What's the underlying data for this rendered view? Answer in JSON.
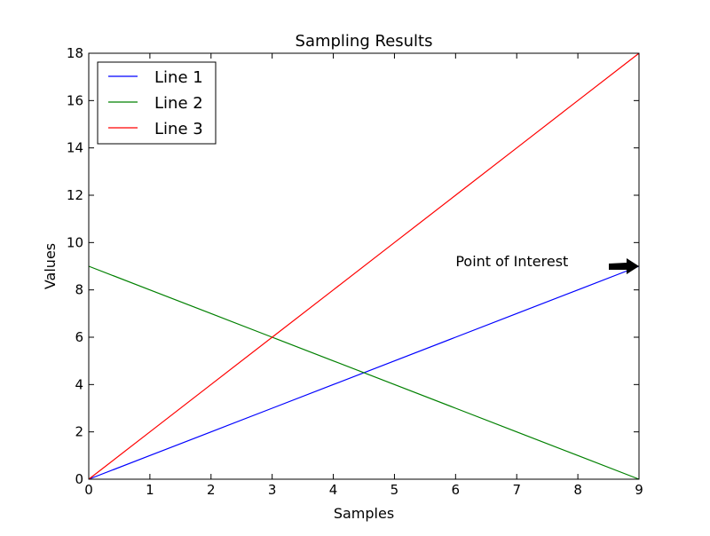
{
  "chart_data": {
    "type": "line",
    "title": "Sampling Results",
    "xlabel": "Samples",
    "ylabel": "Values",
    "xlim": [
      0,
      9
    ],
    "ylim": [
      0,
      18
    ],
    "xticks": [
      0,
      1,
      2,
      3,
      4,
      5,
      6,
      7,
      8,
      9
    ],
    "yticks": [
      0,
      2,
      4,
      6,
      8,
      10,
      12,
      14,
      16,
      18
    ],
    "x": [
      0,
      1,
      2,
      3,
      4,
      5,
      6,
      7,
      8,
      9
    ],
    "series": [
      {
        "name": "Line 1",
        "color": "#0000ff",
        "values": [
          0,
          1,
          2,
          3,
          4,
          5,
          6,
          7,
          8,
          9
        ]
      },
      {
        "name": "Line 2",
        "color": "#008000",
        "values": [
          9,
          8,
          7,
          6,
          5,
          4,
          3,
          2,
          1,
          0
        ]
      },
      {
        "name": "Line 3",
        "color": "#ff0000",
        "values": [
          0,
          2,
          4,
          6,
          8,
          10,
          12,
          14,
          16,
          18
        ]
      }
    ],
    "legend_position": "upper-left",
    "grid": false,
    "annotation": {
      "text": "Point of Interest",
      "point": [
        9,
        9
      ],
      "text_at": [
        6,
        9
      ]
    }
  }
}
